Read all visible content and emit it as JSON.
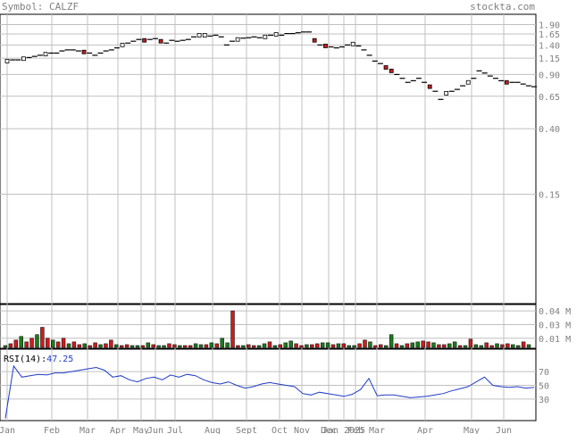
{
  "symbol_label": "Symbol: CALZF",
  "site": "stockta.com",
  "chart_data": [
    {
      "type": "candlestick",
      "name": "price",
      "scale": "log",
      "y_ticks": [
        "1.90",
        "1.65",
        "1.40",
        "1.15",
        "0.90",
        "0.65",
        "0.40",
        "0.15"
      ],
      "x_ticks": [
        "Jan",
        "Feb",
        "Mar",
        "Apr",
        "May",
        "Jun",
        "Jul",
        "Aug",
        "Sept",
        "Oct",
        "Nov",
        "Dec",
        "Jan 2025",
        "Feb",
        "Mar",
        "Apr",
        "May",
        "Jun"
      ],
      "series": [
        {
          "values": [
            1.1,
            1.12,
            1.12,
            1.14,
            1.16,
            1.18,
            1.2,
            1.22,
            1.24,
            1.24,
            1.28,
            1.3,
            1.3,
            1.28,
            1.26,
            1.24,
            1.2,
            1.24,
            1.28,
            1.3,
            1.34,
            1.4,
            1.44,
            1.48,
            1.52,
            1.5,
            1.52,
            1.54,
            1.48,
            1.44,
            1.5,
            1.48,
            1.5,
            1.52,
            1.58,
            1.62,
            1.62,
            1.6,
            1.62,
            1.58,
            1.4,
            1.48,
            1.52,
            1.55,
            1.56,
            1.58,
            1.56,
            1.58,
            1.62,
            1.64,
            1.62,
            1.66,
            1.66,
            1.68,
            1.7,
            1.7,
            1.5,
            1.4,
            1.38,
            1.36,
            1.34,
            1.36,
            1.4,
            1.42,
            1.38,
            1.3,
            1.2,
            1.1,
            1.06,
            1.0,
            0.95,
            0.9,
            0.85,
            0.8,
            0.82,
            0.85,
            0.8,
            0.75,
            0.7,
            0.62,
            0.68,
            0.7,
            0.72,
            0.76,
            0.8,
            0.85,
            0.95,
            0.92,
            0.88,
            0.85,
            0.82,
            0.8,
            0.8,
            0.8,
            0.78,
            0.76,
            0.75
          ]
        }
      ]
    },
    {
      "type": "bar",
      "name": "volume",
      "y_ticks": [
        "0.04 M",
        "0.03 M",
        "0.01 M"
      ],
      "series": [
        {
          "values": [
            0.002,
            0.004,
            0.008,
            0.012,
            0.006,
            0.01,
            0.014,
            0.022,
            0.01,
            0.008,
            0.006,
            0.01,
            0.004,
            0.006,
            0.003,
            0.004,
            0.002,
            0.005,
            0.003,
            0.004,
            0.008,
            0.003,
            0.002,
            0.003,
            0.002,
            0.002,
            0.002,
            0.005,
            0.003,
            0.002,
            0.002,
            0.004,
            0.003,
            0.002,
            0.002,
            0.002,
            0.004,
            0.003,
            0.003,
            0.005,
            0.004,
            0.01,
            0.005,
            0.04,
            0.002,
            0.002,
            0.003,
            0.002,
            0.002,
            0.004,
            0.006,
            0.002,
            0.003,
            0.005,
            0.007,
            0.004,
            0.002,
            0.003,
            0.003,
            0.004,
            0.005,
            0.005,
            0.003,
            0.004,
            0.004,
            0.002,
            0.002,
            0.004,
            0.008,
            0.006,
            0.002,
            0.003,
            0.002,
            0.014,
            0.004,
            0.002,
            0.004,
            0.005,
            0.006,
            0.007,
            0.006,
            0.005,
            0.003,
            0.003,
            0.004,
            0.006,
            0.002,
            0.002,
            0.009,
            0.003,
            0.002,
            0.005,
            0.002,
            0.004,
            0.003,
            0.004,
            0.003,
            0.002,
            0.006,
            0.003
          ]
        }
      ]
    },
    {
      "type": "line",
      "name": "rsi",
      "label": "RSI(14):",
      "current": "47.25",
      "y_ticks": [
        70,
        50,
        30
      ],
      "series": [
        {
          "values": [
            2,
            78,
            62,
            64,
            66,
            65,
            68,
            68,
            70,
            72,
            74,
            76,
            72,
            62,
            64,
            58,
            55,
            60,
            62,
            58,
            65,
            62,
            66,
            64,
            58,
            54,
            52,
            55,
            50,
            46,
            48,
            52,
            54,
            52,
            50,
            48,
            38,
            36,
            40,
            38,
            36,
            34,
            37,
            44,
            60,
            35,
            36,
            36,
            34,
            32,
            33,
            34,
            36,
            38,
            42,
            45,
            48,
            55,
            62,
            50,
            48,
            47,
            48,
            46,
            47
          ]
        }
      ]
    }
  ]
}
